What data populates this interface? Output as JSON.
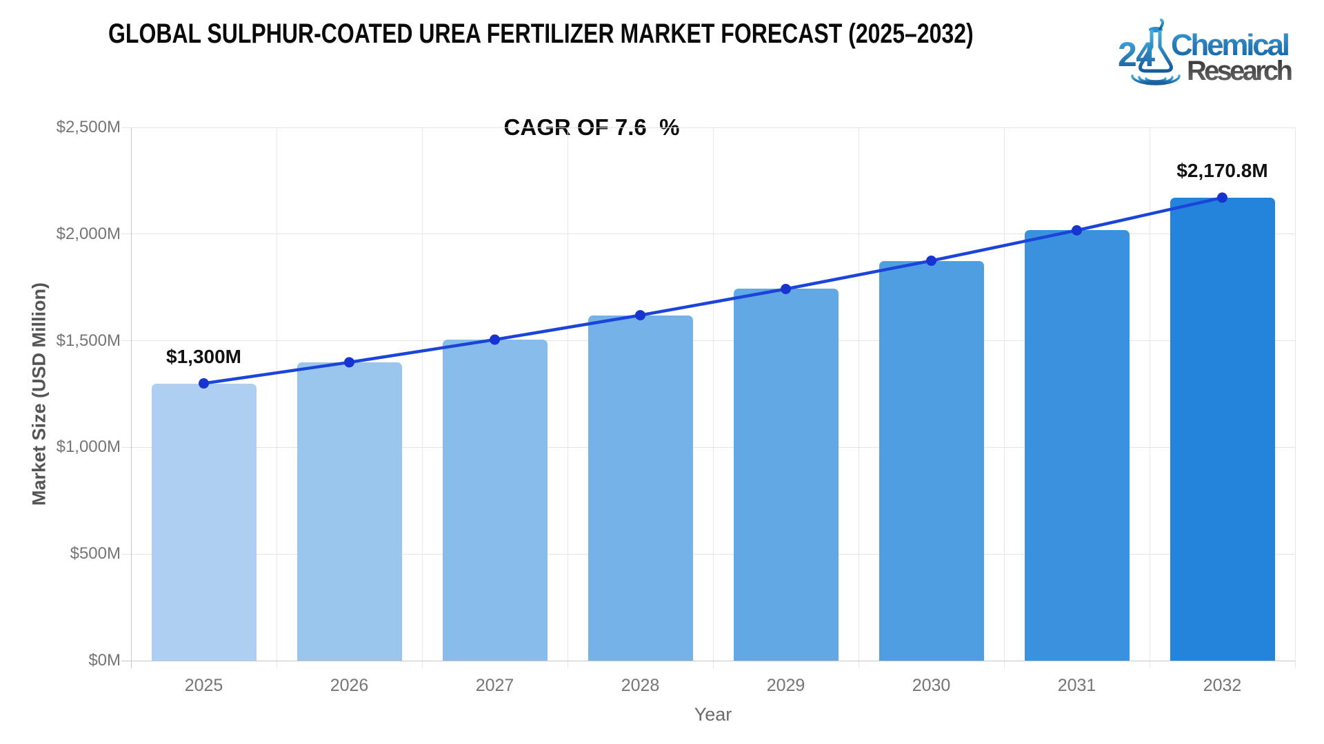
{
  "header": {
    "title": "GLOBAL SULPHUR-COATED UREA FERTILIZER MARKET FORECAST (2025–2032)",
    "logo": {
      "number": "24",
      "word_top": "Chemical",
      "word_bottom": "Research",
      "blue": "#1878be",
      "blue_light": "#3fa9dc",
      "blue_dark": "#15518f",
      "gray_dark": "#333333",
      "gray_light": "#6e6e6e"
    }
  },
  "chart_data": {
    "type": "bar",
    "overlay": "line",
    "title": "CAGR OF 7.6  %",
    "xlabel": "Year",
    "ylabel": "Market Size (USD Million)",
    "categories": [
      "2025",
      "2026",
      "2027",
      "2028",
      "2029",
      "2030",
      "2031",
      "2032"
    ],
    "series": [
      {
        "name": "Market Size (bars)",
        "type": "bar",
        "values": [
          1300,
          1398.8,
          1505.1,
          1619.5,
          1742.6,
          1875.0,
          2017.5,
          2170.8
        ]
      },
      {
        "name": "Trend (line)",
        "type": "line",
        "values": [
          1300,
          1398.8,
          1505.1,
          1619.5,
          1742.6,
          1875.0,
          2017.5,
          2170.8
        ]
      }
    ],
    "ylim": [
      0,
      2500
    ],
    "y_tick_step": 500,
    "y_tick_labels": [
      "$0M",
      "$500M",
      "$1,000M",
      "$1,500M",
      "$2,000M",
      "$2,500M"
    ],
    "grid": true,
    "legend": "none",
    "annotations": [
      {
        "category": "2025",
        "text": "$1,300M"
      },
      {
        "category": "2032",
        "text": "$2,170.8M"
      }
    ],
    "bar_colors": [
      "#aecff1",
      "#9ac6ee",
      "#87bceb",
      "#75b2e8",
      "#62a8e5",
      "#4f9ee1",
      "#3a92de",
      "#2484db"
    ],
    "line_color": "#1b45d9",
    "marker_color": "#1834d0"
  }
}
